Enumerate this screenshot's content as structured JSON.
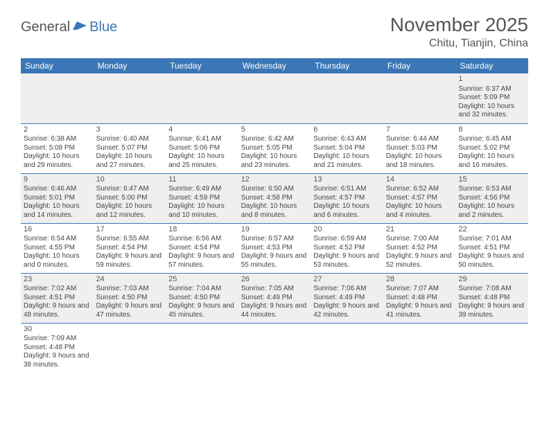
{
  "logo": {
    "part1": "General",
    "part2": "Blue"
  },
  "title": "November 2025",
  "location": "Chitu, Tianjin, China",
  "header_bg": "#3b77b7",
  "columns": [
    "Sunday",
    "Monday",
    "Tuesday",
    "Wednesday",
    "Thursday",
    "Friday",
    "Saturday"
  ],
  "weeks": [
    [
      null,
      null,
      null,
      null,
      null,
      null,
      {
        "d": "1",
        "sr": "6:37 AM",
        "ss": "5:09 PM",
        "dl": "10 hours and 32 minutes."
      }
    ],
    [
      {
        "d": "2",
        "sr": "6:38 AM",
        "ss": "5:08 PM",
        "dl": "10 hours and 29 minutes."
      },
      {
        "d": "3",
        "sr": "6:40 AM",
        "ss": "5:07 PM",
        "dl": "10 hours and 27 minutes."
      },
      {
        "d": "4",
        "sr": "6:41 AM",
        "ss": "5:06 PM",
        "dl": "10 hours and 25 minutes."
      },
      {
        "d": "5",
        "sr": "6:42 AM",
        "ss": "5:05 PM",
        "dl": "10 hours and 23 minutes."
      },
      {
        "d": "6",
        "sr": "6:43 AM",
        "ss": "5:04 PM",
        "dl": "10 hours and 21 minutes."
      },
      {
        "d": "7",
        "sr": "6:44 AM",
        "ss": "5:03 PM",
        "dl": "10 hours and 18 minutes."
      },
      {
        "d": "8",
        "sr": "6:45 AM",
        "ss": "5:02 PM",
        "dl": "10 hours and 16 minutes."
      }
    ],
    [
      {
        "d": "9",
        "sr": "6:46 AM",
        "ss": "5:01 PM",
        "dl": "10 hours and 14 minutes."
      },
      {
        "d": "10",
        "sr": "6:47 AM",
        "ss": "5:00 PM",
        "dl": "10 hours and 12 minutes."
      },
      {
        "d": "11",
        "sr": "6:49 AM",
        "ss": "4:59 PM",
        "dl": "10 hours and 10 minutes."
      },
      {
        "d": "12",
        "sr": "6:50 AM",
        "ss": "4:58 PM",
        "dl": "10 hours and 8 minutes."
      },
      {
        "d": "13",
        "sr": "6:51 AM",
        "ss": "4:57 PM",
        "dl": "10 hours and 6 minutes."
      },
      {
        "d": "14",
        "sr": "6:52 AM",
        "ss": "4:57 PM",
        "dl": "10 hours and 4 minutes."
      },
      {
        "d": "15",
        "sr": "6:53 AM",
        "ss": "4:56 PM",
        "dl": "10 hours and 2 minutes."
      }
    ],
    [
      {
        "d": "16",
        "sr": "6:54 AM",
        "ss": "4:55 PM",
        "dl": "10 hours and 0 minutes."
      },
      {
        "d": "17",
        "sr": "6:55 AM",
        "ss": "4:54 PM",
        "dl": "9 hours and 59 minutes."
      },
      {
        "d": "18",
        "sr": "6:56 AM",
        "ss": "4:54 PM",
        "dl": "9 hours and 57 minutes."
      },
      {
        "d": "19",
        "sr": "6:57 AM",
        "ss": "4:53 PM",
        "dl": "9 hours and 55 minutes."
      },
      {
        "d": "20",
        "sr": "6:59 AM",
        "ss": "4:52 PM",
        "dl": "9 hours and 53 minutes."
      },
      {
        "d": "21",
        "sr": "7:00 AM",
        "ss": "4:52 PM",
        "dl": "9 hours and 52 minutes."
      },
      {
        "d": "22",
        "sr": "7:01 AM",
        "ss": "4:51 PM",
        "dl": "9 hours and 50 minutes."
      }
    ],
    [
      {
        "d": "23",
        "sr": "7:02 AM",
        "ss": "4:51 PM",
        "dl": "9 hours and 48 minutes."
      },
      {
        "d": "24",
        "sr": "7:03 AM",
        "ss": "4:50 PM",
        "dl": "9 hours and 47 minutes."
      },
      {
        "d": "25",
        "sr": "7:04 AM",
        "ss": "4:50 PM",
        "dl": "9 hours and 45 minutes."
      },
      {
        "d": "26",
        "sr": "7:05 AM",
        "ss": "4:49 PM",
        "dl": "9 hours and 44 minutes."
      },
      {
        "d": "27",
        "sr": "7:06 AM",
        "ss": "4:49 PM",
        "dl": "9 hours and 42 minutes."
      },
      {
        "d": "28",
        "sr": "7:07 AM",
        "ss": "4:48 PM",
        "dl": "9 hours and 41 minutes."
      },
      {
        "d": "29",
        "sr": "7:08 AM",
        "ss": "4:48 PM",
        "dl": "9 hours and 39 minutes."
      }
    ],
    [
      {
        "d": "30",
        "sr": "7:09 AM",
        "ss": "4:48 PM",
        "dl": "9 hours and 38 minutes."
      },
      null,
      null,
      null,
      null,
      null,
      null
    ]
  ],
  "labels": {
    "sunrise": "Sunrise:",
    "sunset": "Sunset:",
    "daylight": "Daylight:"
  }
}
